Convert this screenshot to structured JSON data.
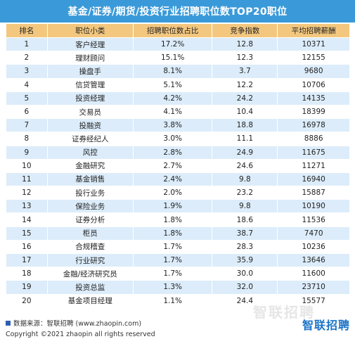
{
  "header": {
    "title": "基金/证券/期货/投资行业招聘职位数TOP20职位"
  },
  "columns": [
    "排名",
    "职位小类",
    "招聘职位数占比",
    "竞争指数",
    "平均招聘薪酬"
  ],
  "chart_data": {
    "type": "table",
    "title": "基金/证券/期货/投资行业招聘职位数TOP20职位",
    "columns": [
      "排名",
      "职位小类",
      "招聘职位数占比",
      "竞争指数",
      "平均招聘薪酬"
    ],
    "rows": [
      [
        "1",
        "客户经理",
        "17.2%",
        "12.8",
        "10371"
      ],
      [
        "2",
        "理财顾问",
        "15.1%",
        "12.3",
        "12155"
      ],
      [
        "3",
        "操盘手",
        "8.1%",
        "3.7",
        "9680"
      ],
      [
        "4",
        "信贷管理",
        "5.1%",
        "12.2",
        "10706"
      ],
      [
        "5",
        "投资经理",
        "4.2%",
        "24.2",
        "14135"
      ],
      [
        "6",
        "交易员",
        "4.1%",
        "10.4",
        "18399"
      ],
      [
        "7",
        "投融资",
        "3.8%",
        "18.8",
        "16978"
      ],
      [
        "8",
        "证券经纪人",
        "3.0%",
        "11.1",
        "8886"
      ],
      [
        "9",
        "风控",
        "2.8%",
        "24.9",
        "11675"
      ],
      [
        "10",
        "金融研究",
        "2.7%",
        "24.6",
        "11271"
      ],
      [
        "11",
        "基金销售",
        "2.4%",
        "9.8",
        "16940"
      ],
      [
        "12",
        "投行业务",
        "2.0%",
        "23.2",
        "15887"
      ],
      [
        "13",
        "保险业务",
        "1.9%",
        "9.8",
        "10190"
      ],
      [
        "14",
        "证券分析",
        "1.8%",
        "18.6",
        "11536"
      ],
      [
        "15",
        "柜员",
        "1.8%",
        "38.7",
        "7470"
      ],
      [
        "16",
        "合规稽查",
        "1.7%",
        "28.3",
        "10236"
      ],
      [
        "17",
        "行业研究",
        "1.7%",
        "35.9",
        "13646"
      ],
      [
        "18",
        "金融/经济研究员",
        "1.7%",
        "30.0",
        "11600"
      ],
      [
        "19",
        "投资总监",
        "1.3%",
        "32.0",
        "23710"
      ],
      [
        "20",
        "基金项目经理",
        "1.1%",
        "24.4",
        "15577"
      ]
    ]
  },
  "footer": {
    "source": "数据来源：智联招聘 (www.zhaopin.com)",
    "copyright": "Copyright ©2021 zhaopin all rights reserved"
  },
  "brand": {
    "watermark": "智联招聘",
    "logo": "智联招聘"
  },
  "colors": {
    "title_bg": "#3a9ad9",
    "header_bg": "#f3c77e",
    "row_alt_bg": "#dcecfa",
    "logo": "#1a73c7"
  }
}
